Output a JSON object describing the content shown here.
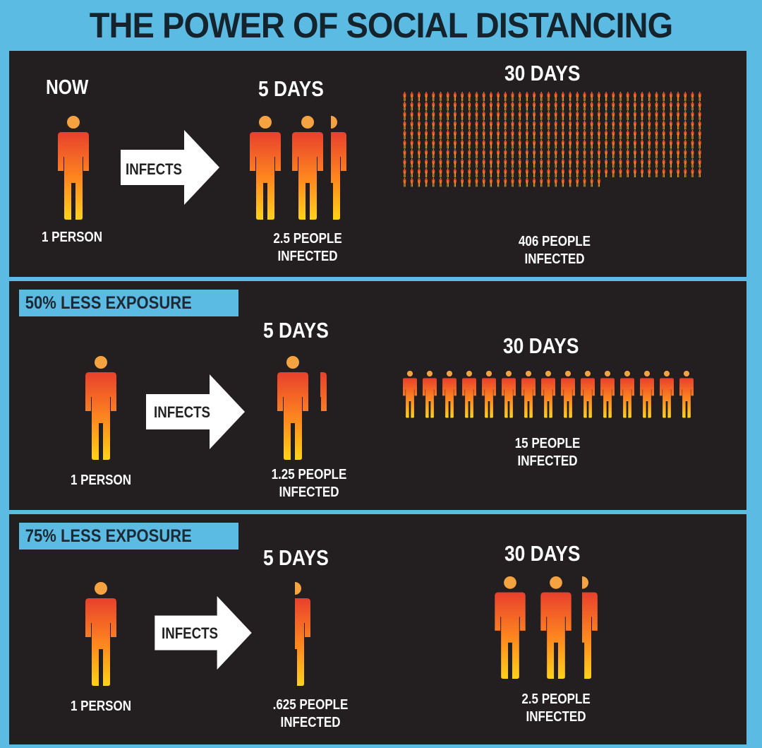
{
  "title": "THE POWER OF SOCIAL DISTANCING",
  "colors": {
    "background": "#5bbbe3",
    "panel": "#231f20",
    "figure_top": "#e8402d",
    "figure_bottom": "#ffd21a",
    "head": "#f4a340"
  },
  "icons": {
    "person": "person-icon",
    "arrow": "right-arrow-icon"
  },
  "sections": [
    {
      "tag": "NOW",
      "arrow_label": "INFECTS",
      "start_label": "1 PERSON",
      "five_days": {
        "heading": "5 DAYS",
        "line1": "2.5 PEOPLE",
        "line2": "INFECTED",
        "count": 2.5
      },
      "thirty_days": {
        "heading": "30 DAYS",
        "line1": "406 PEOPLE",
        "line2": "INFECTED",
        "count": 406
      }
    },
    {
      "tag": "50% LESS EXPOSURE",
      "arrow_label": "INFECTS",
      "start_label": "1 PERSON",
      "five_days": {
        "heading": "5 DAYS",
        "line1": "1.25 PEOPLE",
        "line2": "INFECTED",
        "count": 1.25
      },
      "thirty_days": {
        "heading": "30 DAYS",
        "line1": "15 PEOPLE",
        "line2": "INFECTED",
        "count": 15
      }
    },
    {
      "tag": "75% LESS EXPOSURE",
      "arrow_label": "INFECTS",
      "start_label": "1 PERSON",
      "five_days": {
        "heading": "5 DAYS",
        "line1": ".625 PEOPLE",
        "line2": "INFECTED",
        "count": 0.625
      },
      "thirty_days": {
        "heading": "30 DAYS",
        "line1": "2.5 PEOPLE",
        "line2": "INFECTED",
        "count": 2.5
      }
    }
  ]
}
